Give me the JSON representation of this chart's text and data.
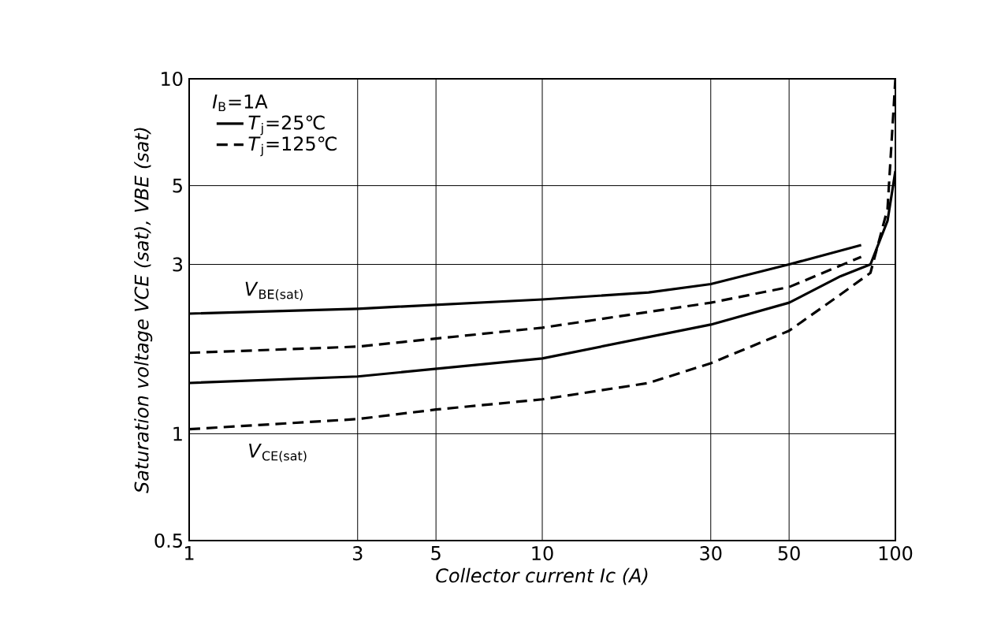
{
  "chart_data": {
    "type": "line",
    "xlabel": "Collector current Ic (A)",
    "ylabel": "Saturation voltage VCE (sat), VBE (sat)",
    "legend_title": "*I*$_{B}$=1A",
    "log": "xy",
    "xlim": [
      1,
      100
    ],
    "ylim": [
      0.5,
      10
    ],
    "xticks": [
      1,
      3,
      5,
      10,
      30,
      50,
      100
    ],
    "yticks": [
      0.5,
      1,
      3,
      5,
      10
    ],
    "grid": true,
    "legend": "top left",
    "marker": "none",
    "series": [
      {
        "name": "*T*$_{j}$=25℃",
        "color": "#000000",
        "line_style": "solid",
        "x": [
          1,
          3,
          10,
          20,
          30,
          50,
          80
        ],
        "values": [
          2.18,
          2.25,
          2.39,
          2.5,
          2.64,
          3.0,
          3.4
        ]
      },
      {
        "name": "*T*$_{j}$=125℃",
        "color": "#000000",
        "line_style": "dashed",
        "x": [
          1,
          3,
          10,
          30,
          50,
          80
        ],
        "values": [
          1.69,
          1.76,
          1.99,
          2.34,
          2.59,
          3.15
        ]
      },
      {
        "color": "#000000",
        "line_style": "solid",
        "x": [
          1,
          3,
          10,
          30,
          50,
          70,
          85,
          95,
          100
        ],
        "values": [
          1.39,
          1.45,
          1.63,
          2.03,
          2.34,
          2.78,
          3.0,
          3.98,
          5.5
        ]
      },
      {
        "color": "#000000",
        "line_style": "dashed",
        "x": [
          1,
          3,
          5,
          10,
          20,
          30,
          50,
          70,
          85,
          95,
          100
        ],
        "values": [
          1.03,
          1.1,
          1.17,
          1.25,
          1.39,
          1.58,
          1.95,
          2.47,
          2.84,
          4.3,
          10
        ]
      }
    ],
    "annotations": [
      "*V*$_{BE(sat)}$",
      "*V*$_{CE(sat)}$"
    ]
  }
}
